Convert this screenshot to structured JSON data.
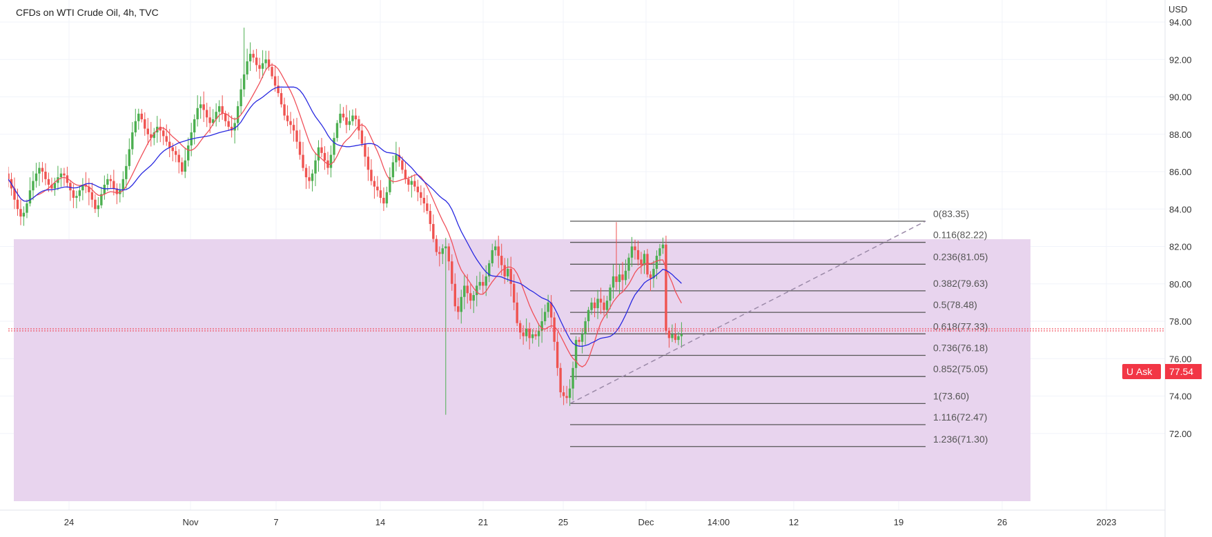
{
  "header": {
    "title": "CFDs on WTI Crude Oil, 4h, TVC"
  },
  "price_axis": {
    "currency": "USD",
    "ticks": [
      "94.00",
      "92.00",
      "90.00",
      "88.00",
      "86.00",
      "84.00",
      "82.00",
      "80.00",
      "78.00",
      "76.00",
      "74.00",
      "72.00"
    ]
  },
  "time_axis": {
    "ticks": [
      "24",
      "Nov",
      "7",
      "14",
      "21",
      "25",
      "Dec",
      "14:00",
      "12",
      "19",
      "26",
      "2023"
    ]
  },
  "ask_badge": {
    "prefix": "U",
    "label": "Ask",
    "price": "77.54"
  },
  "fibonacci": {
    "levels": [
      {
        "ratio": "0",
        "price": "83.35",
        "label": "0(83.35)"
      },
      {
        "ratio": "0.116",
        "price": "82.22",
        "label": "0.116(82.22)"
      },
      {
        "ratio": "0.236",
        "price": "81.05",
        "label": "0.236(81.05)"
      },
      {
        "ratio": "0.382",
        "price": "79.63",
        "label": "0.382(79.63)"
      },
      {
        "ratio": "0.5",
        "price": "78.48",
        "label": "0.5(78.48)"
      },
      {
        "ratio": "0.618",
        "price": "77.33",
        "label": "0.618(77.33)"
      },
      {
        "ratio": "0.736",
        "price": "76.18",
        "label": "0.736(76.18)"
      },
      {
        "ratio": "0.852",
        "price": "75.05",
        "label": "0.852(75.05)"
      },
      {
        "ratio": "1",
        "price": "73.60",
        "label": "1(73.60)"
      },
      {
        "ratio": "1.116",
        "price": "72.47",
        "label": "1.116(72.47)"
      },
      {
        "ratio": "1.236",
        "price": "71.30",
        "label": "1.236(71.30)"
      }
    ]
  },
  "colors": {
    "up": "#4caf50",
    "down": "#ef5350",
    "ma_fast": "#f0505a",
    "ma_slow": "#2828e0",
    "zone": "#e8d4ee",
    "fib_line": "#555555",
    "ask": "#f23645"
  },
  "chart_data": {
    "type": "candlestick",
    "title": "CFDs on WTI Crude Oil, 4h, TVC",
    "ylabel": "USD",
    "ylim": [
      71,
      94.5
    ],
    "closes": [
      85.6,
      85.1,
      84.5,
      84.0,
      83.6,
      83.8,
      84.3,
      85.0,
      85.5,
      85.9,
      86.2,
      86.0,
      85.6,
      85.3,
      85.1,
      85.4,
      85.7,
      85.9,
      85.8,
      85.4,
      85.0,
      84.6,
      84.7,
      85.0,
      85.3,
      85.2,
      84.9,
      84.5,
      84.0,
      84.2,
      84.8,
      85.3,
      85.6,
      85.5,
      85.1,
      84.8,
      85.0,
      85.6,
      86.3,
      87.2,
      88.1,
      88.7,
      89.1,
      88.8,
      88.3,
      88.0,
      87.8,
      88.1,
      88.4,
      88.2,
      87.9,
      87.6,
      87.3,
      87.1,
      86.9,
      86.5,
      86.0,
      86.6,
      87.4,
      88.1,
      88.8,
      89.4,
      89.6,
      89.3,
      88.9,
      88.6,
      88.8,
      89.2,
      89.5,
      89.1,
      88.7,
      88.4,
      88.2,
      88.6,
      89.5,
      90.4,
      91.2,
      91.9,
      92.3,
      92.1,
      91.7,
      91.5,
      91.8,
      92.0,
      91.6,
      91.1,
      90.6,
      90.2,
      89.6,
      89.0,
      88.7,
      88.5,
      88.2,
      87.6,
      86.9,
      86.2,
      85.7,
      85.5,
      85.9,
      86.6,
      87.3,
      87.0,
      86.6,
      86.2,
      86.9,
      87.8,
      88.6,
      89.1,
      88.9,
      88.5,
      88.7,
      89.0,
      88.8,
      88.2,
      87.5,
      86.8,
      86.1,
      85.5,
      85.2,
      85.0,
      84.6,
      84.3,
      84.9,
      85.7,
      86.5,
      86.9,
      86.6,
      86.1,
      85.6,
      85.3,
      85.5,
      85.2,
      84.9,
      84.6,
      84.3,
      83.9,
      83.2,
      82.4,
      81.7,
      81.6,
      81.9,
      82.0,
      81.2,
      80.0,
      78.8,
      78.5,
      79.3,
      79.9,
      79.5,
      79.1,
      79.4,
      79.9,
      80.1,
      79.9,
      80.4,
      81.1,
      81.8,
      82.0,
      81.5,
      81.0,
      80.4,
      80.8,
      80.0,
      79.0,
      77.9,
      77.4,
      77.2,
      77.6,
      77.1,
      77.3,
      77.2,
      77.5,
      78.0,
      78.5,
      79.0,
      78.2,
      76.9,
      75.5,
      74.2,
      74.0,
      73.9,
      74.4,
      75.5,
      77.0,
      76.9,
      77.3,
      78.0,
      78.6,
      79.0,
      78.7,
      79.2,
      79.0,
      78.6,
      79.1,
      79.8,
      80.4,
      80.1,
      80.5,
      80.2,
      80.7,
      81.4,
      82.0,
      81.8,
      81.3,
      81.0,
      81.6,
      80.5,
      80.3,
      80.8,
      81.5,
      81.9,
      82.1,
      77.5,
      77.1,
      77.3,
      77.0,
      77.2,
      77.3
    ],
    "moving_averages": [
      {
        "name": "",
        "color": "#f0505a",
        "period": 10
      },
      {
        "name": "",
        "color": "#2828e0",
        "period": 20
      }
    ],
    "fib_anchor": {
      "low": 73.6,
      "high": 83.35
    },
    "fib_levels": [
      0,
      0.116,
      0.236,
      0.382,
      0.5,
      0.618,
      0.736,
      0.852,
      1,
      1.116,
      1.236
    ],
    "last_price": 77.54,
    "grid": true,
    "legend": "none"
  }
}
